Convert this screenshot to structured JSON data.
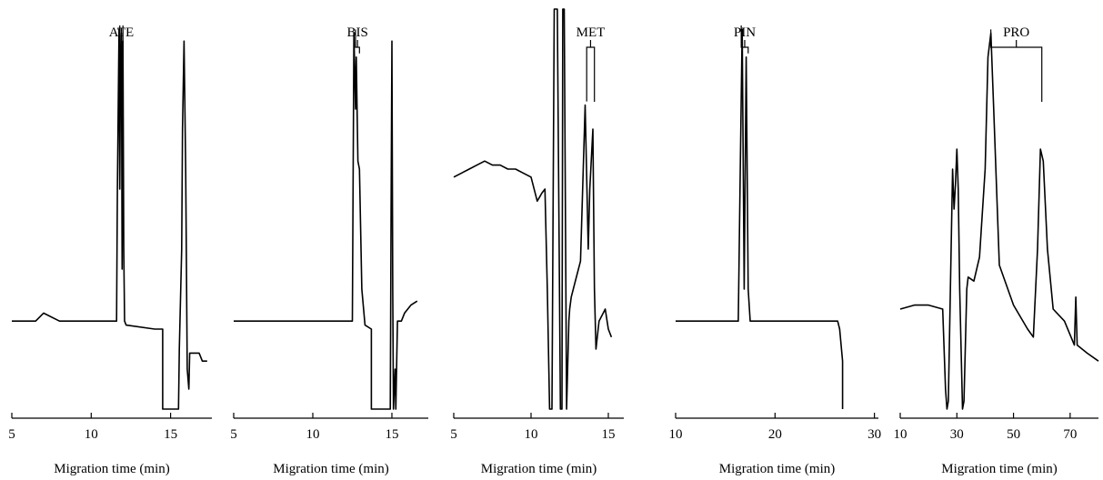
{
  "chart_data": [
    {
      "type": "line",
      "xlabel": "Migration time (min)",
      "xlim": [
        5,
        17.6
      ],
      "xticks": [
        5,
        10,
        15
      ],
      "ylim": [
        0,
        100
      ],
      "peak_label": {
        "text": "ATE",
        "x1": 11.8,
        "x2": 12.0
      },
      "series": [
        {
          "x": [
            5.0,
            6.5,
            7.0,
            8.0,
            9.0,
            10.0,
            11.0,
            11.6,
            11.65,
            11.75,
            11.8,
            11.85,
            11.9,
            11.95,
            12.0,
            12.05,
            12.1,
            12.2,
            14.0,
            14.5,
            14.5,
            15.5,
            15.55,
            15.7,
            15.75,
            15.85,
            15.95,
            16.05,
            16.15,
            16.2,
            16.8,
            17.0,
            17.3
          ],
          "y": [
            22,
            22,
            24,
            22,
            22,
            22,
            22,
            22,
            55,
            95,
            55,
            90,
            94,
            35,
            92,
            40,
            22,
            21,
            20,
            20,
            0,
            0,
            15,
            40,
            70,
            92,
            60,
            10,
            5,
            14,
            14,
            12,
            12
          ]
        }
      ]
    },
    {
      "type": "line",
      "xlabel": "Migration time (min)",
      "xlim": [
        5,
        17.3
      ],
      "xticks": [
        5,
        10,
        15
      ],
      "ylim": [
        0,
        100
      ],
      "peak_label": {
        "text": "BIS",
        "x1": 12.7,
        "x2": 12.95
      },
      "series": [
        {
          "x": [
            5.0,
            6.0,
            7.0,
            8.0,
            9.0,
            10.0,
            11.0,
            11.5,
            12.5,
            12.6,
            12.7,
            12.75,
            12.85,
            12.95,
            13.1,
            13.3,
            13.7,
            13.7,
            14.9,
            14.95,
            15.0,
            15.05,
            15.1,
            15.2,
            15.25,
            15.35,
            15.6,
            15.8,
            16.2,
            16.6,
            16.6
          ],
          "y": [
            22,
            22,
            22,
            22,
            22,
            22,
            22,
            22,
            22,
            94,
            75,
            88,
            62,
            60,
            30,
            21,
            20,
            0,
            0,
            50,
            92,
            30,
            0,
            10,
            0,
            22,
            22,
            24,
            26,
            27,
            27
          ]
        }
      ]
    },
    {
      "type": "line",
      "xlabel": "Migration time (min)",
      "xlim": [
        5,
        16
      ],
      "xticks": [
        5,
        10,
        15
      ],
      "ylim": [
        0,
        100
      ],
      "peak_label": {
        "text": "MET",
        "x1": 13.6,
        "x2": 14.1
      },
      "series": [
        {
          "x": [
            5.0,
            5.5,
            6.0,
            6.5,
            7.0,
            7.5,
            8.0,
            8.5,
            9.0,
            9.5,
            10.0,
            10.4,
            10.55,
            10.7,
            10.9,
            11.05,
            11.2,
            11.35,
            11.5,
            11.7,
            11.9,
            12.0,
            12.05,
            12.15,
            12.3,
            12.45,
            12.5,
            12.6,
            12.8,
            13.2,
            13.5,
            13.7,
            13.8,
            14.0,
            14.1,
            14.2,
            14.4,
            14.8,
            15.0,
            15.2
          ],
          "y": [
            58,
            59,
            60,
            61,
            62,
            61,
            61,
            60,
            60,
            59,
            58,
            52,
            53,
            54,
            55,
            30,
            0,
            0,
            100,
            100,
            0,
            0,
            100,
            100,
            0,
            22,
            25,
            28,
            31,
            37,
            76,
            40,
            55,
            70,
            30,
            15,
            22,
            25,
            20,
            18
          ]
        }
      ]
    },
    {
      "type": "line",
      "xlabel": "Migration time (min)",
      "xlim": [
        10,
        30.4
      ],
      "xticks": [
        10,
        20,
        30
      ],
      "ylim": [
        0,
        100
      ],
      "peak_label": {
        "text": "PIN",
        "x1": 16.6,
        "x2": 17.3
      },
      "series": [
        {
          "x": [
            10.0,
            12.0,
            14.0,
            16.0,
            16.3,
            16.5,
            16.7,
            16.9,
            17.1,
            17.3,
            17.5,
            18.0,
            20.0,
            22.0,
            24.0,
            25.5,
            26.3,
            26.5,
            26.8,
            26.8
          ],
          "y": [
            22,
            22,
            22,
            22,
            22,
            60,
            95,
            30,
            88,
            30,
            22,
            22,
            22,
            22,
            22,
            22,
            22,
            20,
            12,
            0
          ]
        }
      ]
    },
    {
      "type": "line",
      "xlabel": "Migration time (min)",
      "xlim": [
        10,
        80
      ],
      "xticks": [
        10,
        30,
        50,
        70
      ],
      "ylim": [
        0,
        100
      ],
      "peak_label": {
        "text": "PRO",
        "x1": 42,
        "x2": 60
      },
      "series": [
        {
          "x": [
            10.0,
            15.0,
            20.0,
            25.0,
            26.0,
            26.5,
            27.0,
            28.5,
            29.0,
            29.5,
            30.0,
            30.5,
            31.0,
            32.0,
            32.5,
            33.5,
            34.0,
            36.0,
            38.0,
            40.0,
            41.0,
            42.0,
            43.0,
            45.0,
            50.0,
            55.0,
            57.0,
            58.5,
            59.5,
            60.5,
            62.0,
            64.0,
            68.0,
            71.5,
            72.0,
            72.5,
            76.0,
            80.0
          ],
          "y": [
            25,
            26,
            26,
            25,
            5,
            0,
            2,
            60,
            50,
            56,
            65,
            55,
            30,
            0,
            2,
            30,
            33,
            32,
            38,
            60,
            88,
            94,
            75,
            36,
            26,
            20,
            18,
            40,
            65,
            62,
            40,
            25,
            22,
            16,
            28,
            16,
            14,
            12
          ]
        }
      ]
    }
  ]
}
